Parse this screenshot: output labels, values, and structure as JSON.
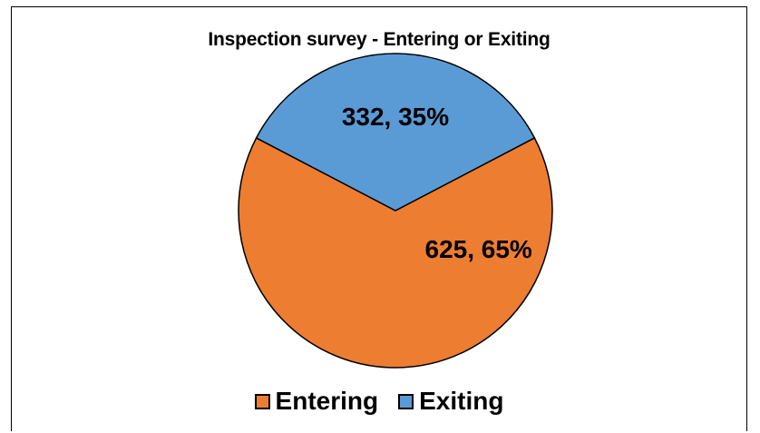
{
  "chart_data": {
    "type": "pie",
    "title": "Inspection survey - Entering or Exiting",
    "categories": [
      "Entering",
      "Exiting"
    ],
    "values": [
      625,
      332
    ],
    "percents": [
      65,
      35
    ],
    "data_labels": [
      "625, 65%",
      "332, 35%"
    ],
    "colors": [
      "#ED7D31",
      "#5B9BD5"
    ],
    "slice_border_color": "#000000",
    "legend_position": "bottom"
  }
}
